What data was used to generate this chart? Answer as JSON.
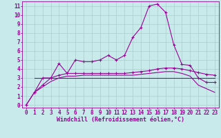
{
  "background_color": "#c8eaea",
  "line_color": "#990099",
  "grid_color": "#aacccc",
  "xlabel": "Windchill (Refroidissement éolien,°C)",
  "xlabel_fontsize": 6.0,
  "tick_fontsize": 5.5,
  "ylim": [
    -0.3,
    11.5
  ],
  "xlim": [
    -0.5,
    23.5
  ],
  "yticks": [
    0,
    1,
    2,
    3,
    4,
    5,
    6,
    7,
    8,
    9,
    10,
    11
  ],
  "xticks": [
    0,
    1,
    2,
    3,
    4,
    5,
    6,
    7,
    8,
    9,
    10,
    11,
    12,
    13,
    14,
    15,
    16,
    17,
    18,
    19,
    20,
    21,
    22,
    23
  ],
  "line1_x": [
    0,
    1,
    2,
    3,
    4,
    5,
    6,
    7,
    8,
    9,
    10,
    11,
    12,
    13,
    14,
    15,
    16,
    17,
    18,
    19,
    20,
    21,
    22,
    23
  ],
  "line1_y": [
    0.0,
    1.4,
    3.0,
    3.0,
    4.6,
    3.5,
    5.0,
    4.8,
    4.8,
    5.0,
    5.5,
    5.0,
    5.5,
    7.5,
    8.6,
    11.0,
    11.2,
    10.3,
    6.7,
    4.5,
    4.4,
    3.0,
    2.5,
    2.5
  ],
  "line2_x": [
    0,
    1,
    2,
    3,
    4,
    5,
    6,
    7,
    8,
    9,
    10,
    11,
    12,
    13,
    14,
    15,
    16,
    17,
    18,
    19,
    20,
    21,
    22,
    23
  ],
  "line2_y": [
    0.0,
    1.4,
    2.2,
    3.0,
    3.3,
    3.5,
    3.5,
    3.5,
    3.5,
    3.5,
    3.5,
    3.5,
    3.5,
    3.6,
    3.7,
    3.8,
    4.0,
    4.1,
    4.1,
    4.0,
    3.8,
    3.6,
    3.4,
    3.3
  ],
  "line3_x": [
    1,
    2,
    3,
    4,
    5,
    6,
    7,
    8,
    9,
    10,
    11,
    12,
    13,
    14,
    15,
    16,
    17,
    18,
    19,
    20,
    21,
    22,
    23
  ],
  "line3_y": [
    3.0,
    3.0,
    3.0,
    3.0,
    3.0,
    3.0,
    3.0,
    3.0,
    3.0,
    3.0,
    3.0,
    3.0,
    3.0,
    3.0,
    3.0,
    3.0,
    3.0,
    3.0,
    3.0,
    3.0,
    3.0,
    3.0,
    3.0
  ],
  "line4_x": [
    1,
    2,
    3,
    4,
    5,
    6,
    7,
    8,
    9,
    10,
    11,
    12,
    13,
    14,
    15,
    16,
    17,
    18,
    19,
    20,
    21,
    22,
    23
  ],
  "line4_y": [
    1.4,
    2.0,
    2.6,
    3.0,
    3.2,
    3.2,
    3.3,
    3.3,
    3.3,
    3.3,
    3.3,
    3.3,
    3.3,
    3.4,
    3.5,
    3.6,
    3.7,
    3.7,
    3.5,
    3.2,
    2.2,
    1.8,
    1.4
  ]
}
